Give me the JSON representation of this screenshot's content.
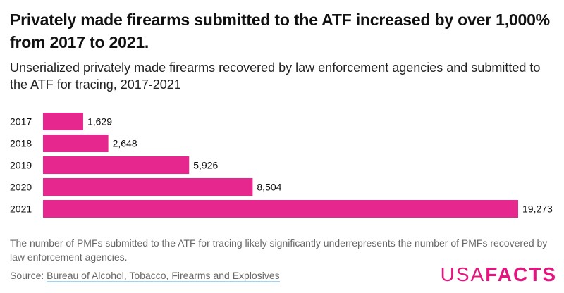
{
  "title": "Privately made firearms submitted to the ATF increased by over 1,000% from 2017 to 2021.",
  "subtitle": "Unserialized privately made firearms recovered by law enforcement agencies and submitted to the ATF for tracing, 2017-2021",
  "note": "The number of PMFs submitted to the ATF for tracing likely significantly underrepresents the number of PMFs recovered by law enforcement agencies.",
  "source_label": "Source: ",
  "source_link": "Bureau of Alcohol, Tobacco, Firearms and Explosives",
  "logo": {
    "light": "USA",
    "bold": "FACTS"
  },
  "colors": {
    "bar": "#e6288e",
    "logo": "#e5157f"
  },
  "chart_data": {
    "type": "bar",
    "orientation": "horizontal",
    "categories": [
      "2017",
      "2018",
      "2019",
      "2020",
      "2021"
    ],
    "values": [
      1629,
      2648,
      5926,
      8504,
      19273
    ],
    "labels": [
      "1,629",
      "2,648",
      "5,926",
      "8,504",
      "19,273"
    ],
    "xlim": [
      0,
      19273
    ],
    "grid": false
  }
}
